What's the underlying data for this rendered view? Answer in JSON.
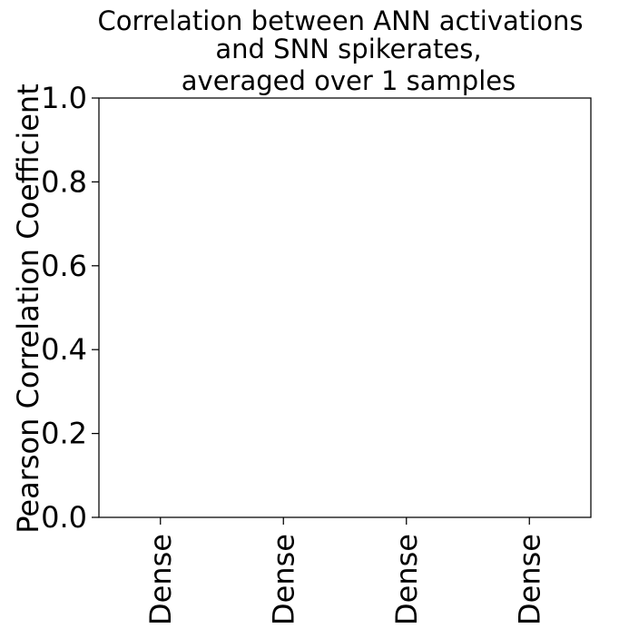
{
  "chart_data": {
    "type": "bar",
    "title_lines": [
      "Correlation between ANN activations",
      "and SNN spikerates,",
      "averaged over 1 samples"
    ],
    "xlabel": "",
    "ylabel": "Pearson Correlation Coefficient",
    "categories": [
      "Dense",
      "Dense",
      "Dense",
      "Dense"
    ],
    "values": [
      0,
      0,
      0,
      0
    ],
    "ylim": [
      0,
      1
    ],
    "yticks": [
      0.0,
      0.2,
      0.4,
      0.6,
      0.8,
      1.0
    ],
    "ytick_labels": [
      "0.0",
      "0.2",
      "0.4",
      "0.6",
      "0.8",
      "1.0"
    ],
    "grid": false,
    "bar_color": "#1f77b4"
  }
}
